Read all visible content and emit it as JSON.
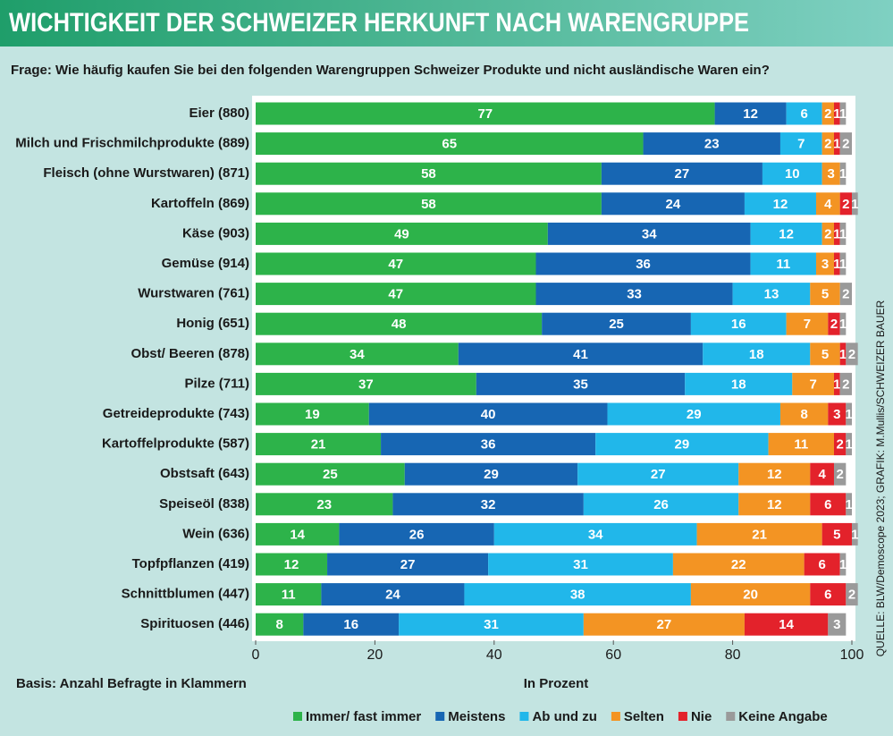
{
  "chart_data": {
    "type": "stacked-bar",
    "title": "WICHTIGKEIT DER SCHWEIZER HERKUNFT NACH WARENGRUPPE",
    "subtitle": "Frage: Wie häufig kaufen Sie bei den folgenden Warengruppen Schweizer Produkte und nicht ausländische Waren ein?",
    "note": "Basis: Anzahl Befragte in Klammern",
    "xlabel": "In Prozent",
    "source": "QUELLE: BLW/Demoscope 2023; GRAFIK: M.Mullis/SCHWEIZER BAUER",
    "categories": [
      "Eier (880)",
      "Milch und Frischmilchprodukte (889)",
      "Fleisch (ohne Wurstwaren) (871)",
      "Kartoffeln (869)",
      "Käse (903)",
      "Gemüse (914)",
      "Wurstwaren (761)",
      "Honig (651)",
      "Obst/ Beeren (878)",
      "Pilze (711)",
      "Getreideprodukte (743)",
      "Kartoffelprodukte (587)",
      "Obstsaft (643)",
      "Speiseöl (838)",
      "Wein (636)",
      "Topfpflanzen (419)",
      "Schnittblumen (447)",
      "Spirituosen (446)"
    ],
    "series": [
      {
        "name": "Immer/ fast immer",
        "color": "#2db34a",
        "values": [
          77,
          65,
          58,
          58,
          49,
          47,
          47,
          48,
          34,
          37,
          19,
          21,
          25,
          23,
          14,
          12,
          11,
          8
        ]
      },
      {
        "name": "Meistens",
        "color": "#1766b3",
        "values": [
          12,
          23,
          27,
          24,
          34,
          36,
          33,
          25,
          41,
          35,
          40,
          36,
          29,
          32,
          26,
          27,
          24,
          16
        ]
      },
      {
        "name": "Ab und zu",
        "color": "#21b7ea",
        "values": [
          6,
          7,
          10,
          12,
          12,
          11,
          13,
          16,
          18,
          18,
          29,
          29,
          27,
          26,
          34,
          31,
          38,
          31
        ]
      },
      {
        "name": "Selten",
        "color": "#f39423",
        "values": [
          2,
          2,
          3,
          4,
          2,
          3,
          5,
          7,
          5,
          7,
          8,
          11,
          12,
          12,
          21,
          22,
          20,
          27
        ]
      },
      {
        "name": "Nie",
        "color": "#e3222b",
        "values": [
          1,
          1,
          null,
          2,
          1,
          1,
          null,
          2,
          1,
          1,
          3,
          2,
          4,
          6,
          5,
          6,
          6,
          14
        ]
      },
      {
        "name": "Keine Angabe",
        "color": "#9a9a9a",
        "values": [
          1,
          2,
          1,
          1,
          1,
          1,
          2,
          1,
          2,
          2,
          1,
          1,
          2,
          1,
          1,
          1,
          2,
          3
        ]
      }
    ],
    "xlim": [
      0,
      100
    ],
    "xticks": [
      0,
      20,
      40,
      60,
      80,
      100
    ],
    "grid": false
  }
}
